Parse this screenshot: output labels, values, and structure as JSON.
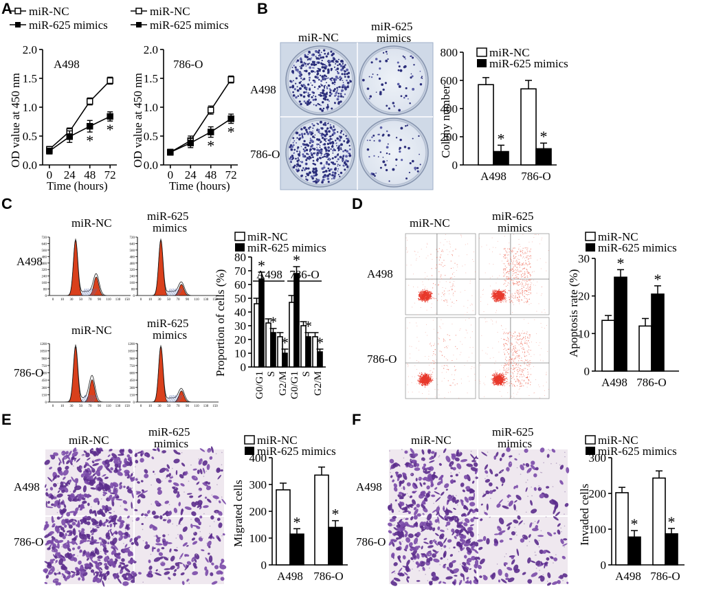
{
  "panels": {
    "A": {
      "letter": "A",
      "legend": [
        "miR-NC",
        "miR-625 mimics"
      ],
      "ylabel": "OD value at 450 nm",
      "xlabel": "Time (hours)",
      "subplots": [
        {
          "title": "A498",
          "x": [
            0,
            24,
            48,
            72
          ],
          "nc": [
            0.27,
            0.58,
            1.1,
            1.46
          ],
          "mimics": [
            0.24,
            0.49,
            0.67,
            0.84
          ],
          "nc_err": [
            0.05,
            0.06,
            0.06,
            0.06
          ],
          "mimics_err": [
            0.05,
            0.1,
            0.1,
            0.08
          ],
          "stars": [
            false,
            false,
            true,
            true
          ]
        },
        {
          "title": "786-O",
          "x": [
            0,
            24,
            48,
            72
          ],
          "nc": [
            0.22,
            0.42,
            0.95,
            1.48
          ],
          "mimics": [
            0.22,
            0.38,
            0.57,
            0.8
          ],
          "nc_err": [
            0.05,
            0.08,
            0.07,
            0.06
          ],
          "mimics_err": [
            0.05,
            0.08,
            0.09,
            0.08
          ],
          "stars": [
            false,
            false,
            true,
            true
          ]
        }
      ],
      "yticks": [
        "0.0",
        "0.5",
        "1.0",
        "1.5",
        "2.0"
      ],
      "xticks": [
        "0",
        "24",
        "48",
        "72"
      ]
    },
    "B": {
      "letter": "B",
      "col_labels": [
        "miR-NC",
        "miR-625\nmimics"
      ],
      "row_labels": [
        "A498",
        "786-O"
      ],
      "legend": [
        "miR-NC",
        "miR-625 mimics"
      ],
      "ylabel": "Colony number",
      "yticks": [
        "0",
        "200",
        "400",
        "600",
        "800"
      ],
      "groups": [
        "A498",
        "786-O"
      ]
    },
    "C": {
      "letter": "C",
      "col_labels": [
        "miR-NC",
        "miR-625\nmimics",
        "miR-NC",
        "miR-625\nmimics"
      ],
      "row_labels": [
        "A498",
        "786-O"
      ],
      "hist_yticks_top": [
        "0",
        "80",
        "160",
        "240",
        "320",
        "400",
        "480",
        "560",
        "640",
        "720"
      ],
      "hist_yticks_bottom": [
        "0",
        "150",
        "300",
        "450",
        "600",
        "750",
        "900",
        "1050",
        "1200"
      ],
      "hist_xticks": [
        "0",
        "10",
        "30",
        "50",
        "70",
        "90",
        "110",
        "130",
        "150"
      ],
      "legend": [
        "miR-NC",
        "miR-625 mimics"
      ],
      "ylabel": "Proportion of cells (%)",
      "yticks": [
        "0",
        "10",
        "20",
        "30",
        "40",
        "50",
        "60",
        "70",
        "80"
      ],
      "group_labels": [
        "A498",
        "786-O"
      ],
      "phases": [
        "G0/G1",
        "S",
        "G2/M",
        "G0/G1",
        "S",
        "G2/M"
      ]
    },
    "D": {
      "letter": "D",
      "col_labels": [
        "miR-NC",
        "miR-625\nmimics"
      ],
      "row_labels": [
        "A498",
        "786-O"
      ],
      "legend": [
        "miR-NC",
        "miR-625 mimics"
      ],
      "ylabel": "Apoptosis rate (%)",
      "yticks": [
        "0",
        "10",
        "20",
        "30"
      ],
      "groups": [
        "A498",
        "786-O"
      ]
    },
    "E": {
      "letter": "E",
      "col_labels": [
        "miR-NC",
        "miR-625\nmimics"
      ],
      "row_labels": [
        "A498",
        "786-O"
      ],
      "legend": [
        "miR-NC",
        "miR-625 mimics"
      ],
      "ylabel": "Migrated cells",
      "yticks": [
        "0",
        "100",
        "200",
        "300",
        "400"
      ],
      "groups": [
        "A498",
        "786-O"
      ]
    },
    "F": {
      "letter": "F",
      "col_labels": [
        "miR-NC",
        "miR-625\nmimics"
      ],
      "row_labels": [
        "A498",
        "786-O"
      ],
      "legend": [
        "miR-NC",
        "miR-625 mimics"
      ],
      "ylabel": "Invaded cells",
      "yticks": [
        "0",
        "100",
        "200",
        "300"
      ],
      "groups": [
        "A498",
        "786-O"
      ]
    }
  },
  "chart_data": [
    {
      "type": "line",
      "title": "A498",
      "xlabel": "Time (hours)",
      "ylabel": "OD value at 450 nm",
      "x": [
        0,
        24,
        48,
        72
      ],
      "ylim": [
        0,
        2.0
      ],
      "series": [
        {
          "name": "miR-NC",
          "values": [
            0.27,
            0.58,
            1.1,
            1.46
          ]
        },
        {
          "name": "miR-625 mimics",
          "values": [
            0.24,
            0.49,
            0.67,
            0.84
          ]
        }
      ]
    },
    {
      "type": "line",
      "title": "786-O",
      "xlabel": "Time (hours)",
      "ylabel": "OD value at 450 nm",
      "x": [
        0,
        24,
        48,
        72
      ],
      "ylim": [
        0,
        2.0
      ],
      "series": [
        {
          "name": "miR-NC",
          "values": [
            0.22,
            0.42,
            0.95,
            1.48
          ]
        },
        {
          "name": "miR-625 mimics",
          "values": [
            0.22,
            0.38,
            0.57,
            0.8
          ]
        }
      ]
    },
    {
      "type": "bar",
      "ylabel": "Colony number",
      "categories": [
        "A498",
        "786-O"
      ],
      "ylim": [
        0,
        800
      ],
      "series": [
        {
          "name": "miR-NC",
          "values": [
            570,
            540
          ],
          "err": [
            50,
            60
          ]
        },
        {
          "name": "miR-625 mimics",
          "values": [
            95,
            115
          ],
          "err": [
            45,
            40
          ]
        }
      ],
      "significant": [
        true,
        true
      ]
    },
    {
      "type": "bar",
      "ylabel": "Proportion of cells (%)",
      "ylim": [
        0,
        80
      ],
      "categories": [
        "A498 G0/G1",
        "A498 S",
        "A498 G2/M",
        "786-O G0/G1",
        "786-O S",
        "786-O G2/M"
      ],
      "series": [
        {
          "name": "miR-NC",
          "values": [
            46,
            32,
            22,
            47,
            30,
            22
          ],
          "err": [
            4,
            3,
            3,
            5,
            3,
            3
          ]
        },
        {
          "name": "miR-625 mimics",
          "values": [
            64,
            25,
            10,
            68,
            22,
            11
          ],
          "err": [
            5,
            3,
            3,
            5,
            3,
            2
          ]
        }
      ],
      "significant": [
        true,
        true,
        true,
        true,
        true,
        true
      ]
    },
    {
      "type": "bar",
      "ylabel": "Apoptosis rate (%)",
      "categories": [
        "A498",
        "786-O"
      ],
      "ylim": [
        0,
        30
      ],
      "series": [
        {
          "name": "miR-NC",
          "values": [
            13.5,
            12
          ],
          "err": [
            1.3,
            2
          ]
        },
        {
          "name": "miR-625 mimics",
          "values": [
            25,
            20.5
          ],
          "err": [
            2,
            2.2
          ]
        }
      ],
      "significant": [
        true,
        true
      ]
    },
    {
      "type": "bar",
      "ylabel": "Migrated cells",
      "categories": [
        "A498",
        "786-O"
      ],
      "ylim": [
        0,
        400
      ],
      "series": [
        {
          "name": "miR-NC",
          "values": [
            280,
            335
          ],
          "err": [
            25,
            30
          ]
        },
        {
          "name": "miR-625 mimics",
          "values": [
            115,
            140
          ],
          "err": [
            20,
            25
          ]
        }
      ],
      "significant": [
        true,
        true
      ]
    },
    {
      "type": "bar",
      "ylabel": "Invaded cells",
      "categories": [
        "A498",
        "786-O"
      ],
      "ylim": [
        0,
        300
      ],
      "series": [
        {
          "name": "miR-NC",
          "values": [
            202,
            243
          ],
          "err": [
            15,
            20
          ]
        },
        {
          "name": "miR-625 mimics",
          "values": [
            78,
            87
          ],
          "err": [
            18,
            15
          ]
        }
      ],
      "significant": [
        true,
        true
      ]
    }
  ]
}
